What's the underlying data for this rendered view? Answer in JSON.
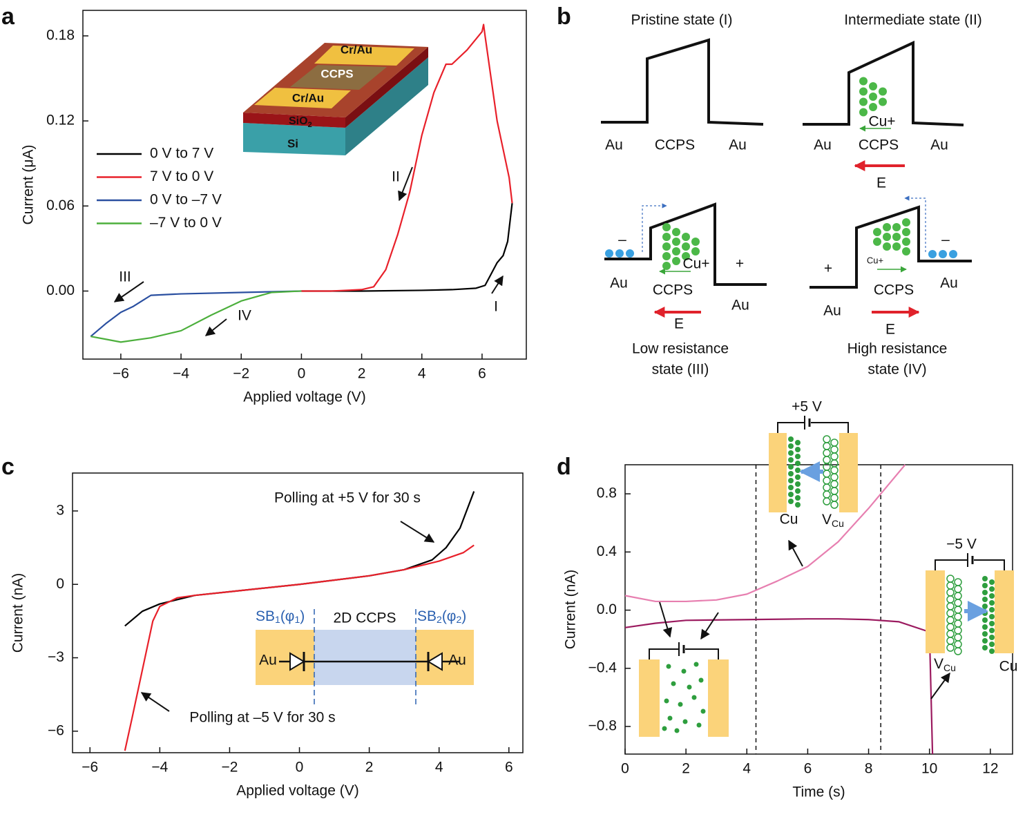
{
  "panel_labels": [
    "a",
    "b",
    "c",
    "d"
  ],
  "chart_data": [
    {
      "type": "line",
      "xlabel": "Applied voltage (V)",
      "ylabel": "Current (μA)",
      "xlim": [
        -7.26,
        7.47
      ],
      "ylim": [
        -0.048,
        0.198
      ],
      "xticks": [
        {
          "value": -6,
          "label": "−6"
        },
        {
          "value": -4,
          "label": "−4"
        },
        {
          "value": -2,
          "label": "−2"
        },
        0,
        2,
        4,
        6
      ],
      "yticks": [
        0.18,
        0.12,
        0.06,
        {
          "value": 0,
          "label": "0.00"
        }
      ],
      "legend": "left",
      "series": [
        {
          "name": "0 V to 7 V",
          "color": "#000000",
          "x": [
            0,
            2,
            4,
            5,
            5.8,
            6.1,
            6.3,
            6.5,
            6.7,
            6.85,
            7
          ],
          "values": [
            0,
            0,
            0.0005,
            0.001,
            0.002,
            0.004,
            0.012,
            0.02,
            0.025,
            0.035,
            0.062
          ]
        },
        {
          "name": "7 V to 0 V",
          "color": "#e8202a",
          "x": [
            7,
            6.9,
            6.7,
            6.5,
            6.3,
            6.1,
            6.05,
            6,
            5.5,
            5,
            4.8,
            4.4,
            4,
            3.6,
            3.2,
            2.8,
            2.4,
            2,
            1,
            0
          ],
          "values": [
            0.062,
            0.08,
            0.1,
            0.12,
            0.15,
            0.18,
            0.188,
            0.183,
            0.17,
            0.16,
            0.16,
            0.14,
            0.11,
            0.07,
            0.04,
            0.015,
            0.003,
            0.001,
            0,
            0
          ]
        },
        {
          "name": "0 V to –7 V",
          "color": "#2a4fa0",
          "x": [
            0,
            -2,
            -4,
            -5,
            -5.3,
            -5.6,
            -6,
            -6.5,
            -7
          ],
          "values": [
            0,
            -0.001,
            -0.002,
            -0.003,
            -0.007,
            -0.011,
            -0.015,
            -0.023,
            -0.032
          ]
        },
        {
          "name": "–7 V to 0 V",
          "color": "#4caf3c",
          "x": [
            -7,
            -6.5,
            -6,
            -5,
            -4,
            -3,
            -2,
            -1,
            0
          ],
          "values": [
            -0.032,
            -0.034,
            -0.036,
            -0.033,
            -0.028,
            -0.017,
            -0.007,
            -0.001,
            0
          ]
        }
      ],
      "annotations": [
        "I",
        "II",
        "III",
        "IV"
      ],
      "inset": {
        "top_electrode": "Cr/Au",
        "channel": "CCPS",
        "bottom_electrode": "Cr/Au",
        "oxide": [
          "SiO",
          "2"
        ],
        "substrate": "Si"
      }
    },
    {
      "type": "line",
      "xlabel": "Applied voltage (V)",
      "ylabel": "Current (nA)",
      "xlim": [
        -6.5,
        6.4
      ],
      "ylim": [
        -6.88,
        4.55
      ],
      "xticks": [
        {
          "value": -6,
          "label": "−6"
        },
        {
          "value": -4,
          "label": "−4"
        },
        {
          "value": -2,
          "label": "−2"
        },
        0,
        2,
        4,
        6
      ],
      "yticks": [
        3,
        0,
        {
          "value": -3,
          "label": "−3"
        },
        {
          "value": -6,
          "label": "−6"
        }
      ],
      "series": [
        {
          "color": "#000000",
          "x": [
            -5,
            -4.5,
            -4,
            -3,
            -2,
            0,
            2,
            3,
            3.8,
            4.2,
            4.6,
            5
          ],
          "values": [
            -1.7,
            -1.1,
            -0.8,
            -0.45,
            -0.3,
            0,
            0.35,
            0.6,
            1.0,
            1.5,
            2.3,
            3.8
          ]
        },
        {
          "color": "#e8202a",
          "x": [
            -5,
            -4.8,
            -4.5,
            -4.2,
            -4,
            -3.5,
            -3,
            -2,
            0,
            2,
            3,
            4,
            4.7,
            5
          ],
          "values": [
            -6.8,
            -5.5,
            -3.5,
            -1.5,
            -0.9,
            -0.55,
            -0.45,
            -0.3,
            0,
            0.35,
            0.6,
            0.95,
            1.3,
            1.6
          ]
        }
      ],
      "annotations": [
        "Polling at +5 V for 30 s",
        "Polling at –5 V for 30 s"
      ],
      "inset": {
        "left_barrier": [
          "SB",
          "1",
          "(φ",
          "1",
          ")"
        ],
        "channel": "2D CCPS",
        "right_barrier": [
          "SB",
          "2",
          "(φ",
          "2",
          ")"
        ],
        "left_electrode": "Au",
        "right_electrode": "Au"
      }
    },
    {
      "type": "line",
      "xlabel": "Time (s)",
      "ylabel": "Current (nA)",
      "xlim": [
        0,
        12.73
      ],
      "ylim": [
        -0.99,
        1.0
      ],
      "xticks": [
        0,
        2,
        4,
        6,
        8,
        10,
        12
      ],
      "yticks": [
        0.8,
        0.4,
        {
          "value": 0,
          "label": "0.0"
        },
        {
          "value": -0.4,
          "label": "−0.4"
        },
        {
          "value": -0.8,
          "label": "−0.8"
        }
      ],
      "vlines": [
        4.3,
        8.4
      ],
      "series": [
        {
          "color": "#e77fb0",
          "x": [
            0,
            1,
            2,
            3,
            4,
            5,
            6,
            7,
            8,
            9.2
          ],
          "values": [
            0.1,
            0.06,
            0.06,
            0.07,
            0.11,
            0.2,
            0.3,
            0.47,
            0.7,
            1.0
          ]
        },
        {
          "color": "#9b1a5f",
          "x": [
            0,
            1,
            2,
            4,
            6,
            7,
            8,
            9,
            10,
            10.1
          ],
          "values": [
            -0.12,
            -0.09,
            -0.07,
            -0.065,
            -0.06,
            -0.06,
            -0.065,
            -0.08,
            -0.15,
            -0.99
          ]
        }
      ],
      "inset": {
        "positive_bias": "+5 V",
        "negative_bias": "−5 V",
        "cu": "Cu",
        "vacancy": [
          "V",
          "Cu"
        ]
      }
    }
  ],
  "diagram": {
    "pristine": {
      "title": "Pristine state (I)",
      "left": "Au",
      "middle": "CCPS",
      "right": "Au"
    },
    "intermediate": {
      "title": "Intermediate state (II)",
      "left": "Au",
      "middle": "CCPS",
      "right": "Au",
      "ion": "Cu+",
      "field": "E"
    },
    "low": {
      "title": [
        "Low resistance",
        "state (III)"
      ],
      "left": "Au",
      "middle": "CCPS",
      "right": "Au",
      "ion": "Cu+",
      "minus": "–",
      "plus": "+",
      "field": "E"
    },
    "high": {
      "title": [
        "High resistance",
        "state (IV)"
      ],
      "left": "Au",
      "middle": "CCPS",
      "right": "Au",
      "ion": "Cu+",
      "minus": "–",
      "plus": "+",
      "field": "E"
    }
  }
}
